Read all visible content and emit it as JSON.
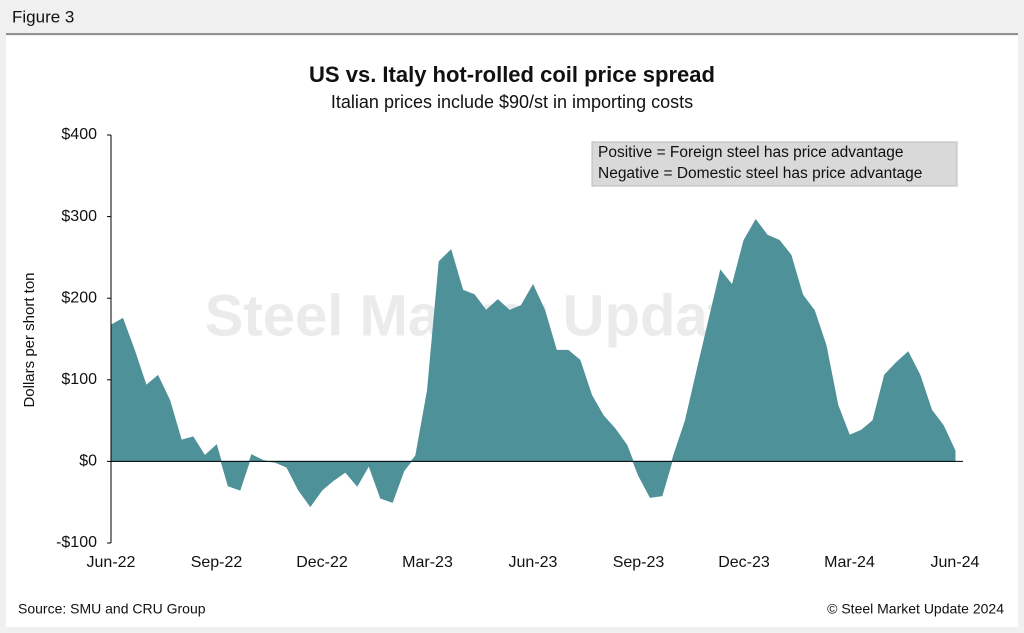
{
  "figure_label": "Figure 3",
  "chart_data": {
    "type": "area",
    "title": "US vs. Italy hot-rolled coil price spread",
    "subtitle": "Italian prices include $90/st in importing costs",
    "y_axis_label": "Dollars per short ton",
    "annotation": [
      "Positive = Foreign steel has price advantage",
      "Negative = Domestic steel has price advantage"
    ],
    "watermark": "Steel Market Update",
    "categories": [
      "Jun-22",
      null,
      null,
      null,
      null,
      null,
      null,
      null,
      null,
      "Sep-22",
      null,
      null,
      null,
      null,
      null,
      null,
      null,
      null,
      "Dec-22",
      null,
      null,
      null,
      null,
      null,
      null,
      null,
      null,
      "Mar-23",
      null,
      null,
      null,
      null,
      null,
      null,
      null,
      null,
      "Jun-23",
      null,
      null,
      null,
      null,
      null,
      null,
      null,
      null,
      "Sep-23",
      null,
      null,
      null,
      null,
      null,
      null,
      null,
      null,
      "Dec-23",
      null,
      null,
      null,
      null,
      null,
      null,
      null,
      null,
      "Mar-24",
      null,
      null,
      null,
      null,
      null,
      null,
      null,
      null,
      "Jun-24"
    ],
    "values": [
      167,
      175,
      136,
      93,
      105,
      75,
      26,
      30,
      7,
      20,
      -30,
      -35,
      8,
      1,
      -1,
      -7,
      -35,
      -55,
      -35,
      -23,
      -13,
      -30,
      -5,
      -45,
      -50,
      -11,
      7,
      87,
      245,
      259,
      210,
      204,
      185,
      198,
      185,
      191,
      216,
      185,
      136,
      136,
      124,
      81,
      56,
      40,
      20,
      -17,
      -44,
      -42,
      7,
      50,
      112,
      173,
      234,
      216,
      271,
      296,
      277,
      271,
      253,
      204,
      185,
      142,
      69,
      32,
      38,
      50,
      106,
      121,
      134,
      106,
      63,
      44,
      13
    ],
    "color": "#4f9199",
    "ylim": [
      -100,
      400
    ],
    "yticks": [
      {
        "value": -100,
        "label": "-$100"
      },
      {
        "value": 0,
        "label": "$0"
      },
      {
        "value": 100,
        "label": "$100"
      },
      {
        "value": 200,
        "label": "$200"
      },
      {
        "value": 300,
        "label": "$300"
      },
      {
        "value": 400,
        "label": "$400"
      }
    ]
  },
  "source": "Source: SMU and CRU Group",
  "copyright": "© Steel Market Update 2024"
}
